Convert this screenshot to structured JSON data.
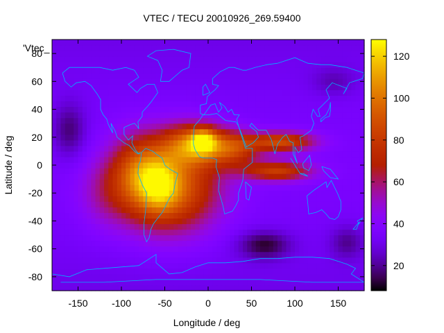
{
  "chart_data": {
    "type": "heatmap",
    "title": "VTEC / TECU 20010926_269.59400",
    "xlabel": "Longitude / deg",
    "ylabel": "Latitude / deg",
    "xlim": [
      -180,
      180
    ],
    "ylim": [
      -90,
      90
    ],
    "x_ticks": [
      -150,
      -100,
      -50,
      0,
      50,
      100,
      150
    ],
    "y_ticks": [
      -80,
      -60,
      -40,
      -20,
      0,
      20,
      40,
      60,
      80
    ],
    "colorbar": {
      "range": [
        8,
        128
      ],
      "ticks": [
        20,
        40,
        60,
        80,
        100,
        120
      ]
    },
    "key_label": "'Vtec_",
    "grid": false,
    "features": [
      {
        "name": "south-american-crest",
        "lon": -60,
        "lat": -12,
        "peak": 115
      },
      {
        "name": "north-african-crest",
        "lon": -5,
        "lat": 17,
        "peak": 125
      },
      {
        "name": "asian-northern-band",
        "lon": 85,
        "lat": 18,
        "peak": 88
      },
      {
        "name": "asian-southern-band",
        "lon": 85,
        "lat": -5,
        "peak": 85
      },
      {
        "name": "indian-ocean-dip",
        "lon": 65,
        "lat": -55,
        "peak": 10
      },
      {
        "name": "north-pacific-dip",
        "lon": -160,
        "lat": 25,
        "peak": 15
      }
    ]
  }
}
